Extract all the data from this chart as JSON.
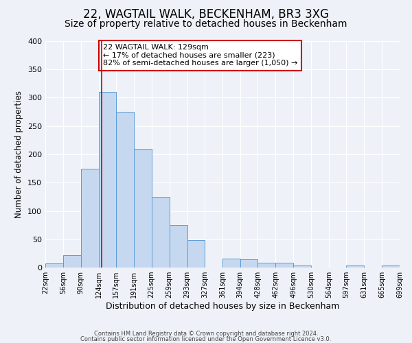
{
  "title": "22, WAGTAIL WALK, BECKENHAM, BR3 3XG",
  "subtitle": "Size of property relative to detached houses in Beckenham",
  "xlabel": "Distribution of detached houses by size in Beckenham",
  "ylabel": "Number of detached properties",
  "bin_edges": [
    22,
    56,
    90,
    124,
    157,
    191,
    225,
    259,
    293,
    327,
    361,
    394,
    428,
    462,
    496,
    530,
    564,
    597,
    631,
    665,
    699
  ],
  "bin_labels": [
    "22sqm",
    "56sqm",
    "90sqm",
    "124sqm",
    "157sqm",
    "191sqm",
    "225sqm",
    "259sqm",
    "293sqm",
    "327sqm",
    "361sqm",
    "394sqm",
    "428sqm",
    "462sqm",
    "496sqm",
    "530sqm",
    "564sqm",
    "597sqm",
    "631sqm",
    "665sqm",
    "699sqm"
  ],
  "bar_heights": [
    7,
    22,
    175,
    310,
    275,
    210,
    125,
    75,
    48,
    0,
    16,
    15,
    8,
    8,
    4,
    0,
    0,
    4,
    0,
    4
  ],
  "bar_color": "#c5d8f0",
  "bar_edge_color": "#5b9bd5",
  "vline_x": 129,
  "vline_color": "#cc0000",
  "annotation_text": "22 WAGTAIL WALK: 129sqm\n← 17% of detached houses are smaller (223)\n82% of semi-detached houses are larger (1,050) →",
  "annotation_box_color": "#ffffff",
  "annotation_box_edge": "#cc0000",
  "ylim": [
    0,
    400
  ],
  "yticks": [
    0,
    50,
    100,
    150,
    200,
    250,
    300,
    350,
    400
  ],
  "footer1": "Contains HM Land Registry data © Crown copyright and database right 2024.",
  "footer2": "Contains public sector information licensed under the Open Government Licence v3.0.",
  "background_color": "#eef2f8",
  "grid_color": "#ffffff",
  "title_fontsize": 12,
  "subtitle_fontsize": 10,
  "annotation_fontsize": 8,
  "xlabel_fontsize": 9,
  "ylabel_fontsize": 8.5,
  "xtick_fontsize": 7,
  "ytick_fontsize": 8,
  "footer_fontsize": 6
}
